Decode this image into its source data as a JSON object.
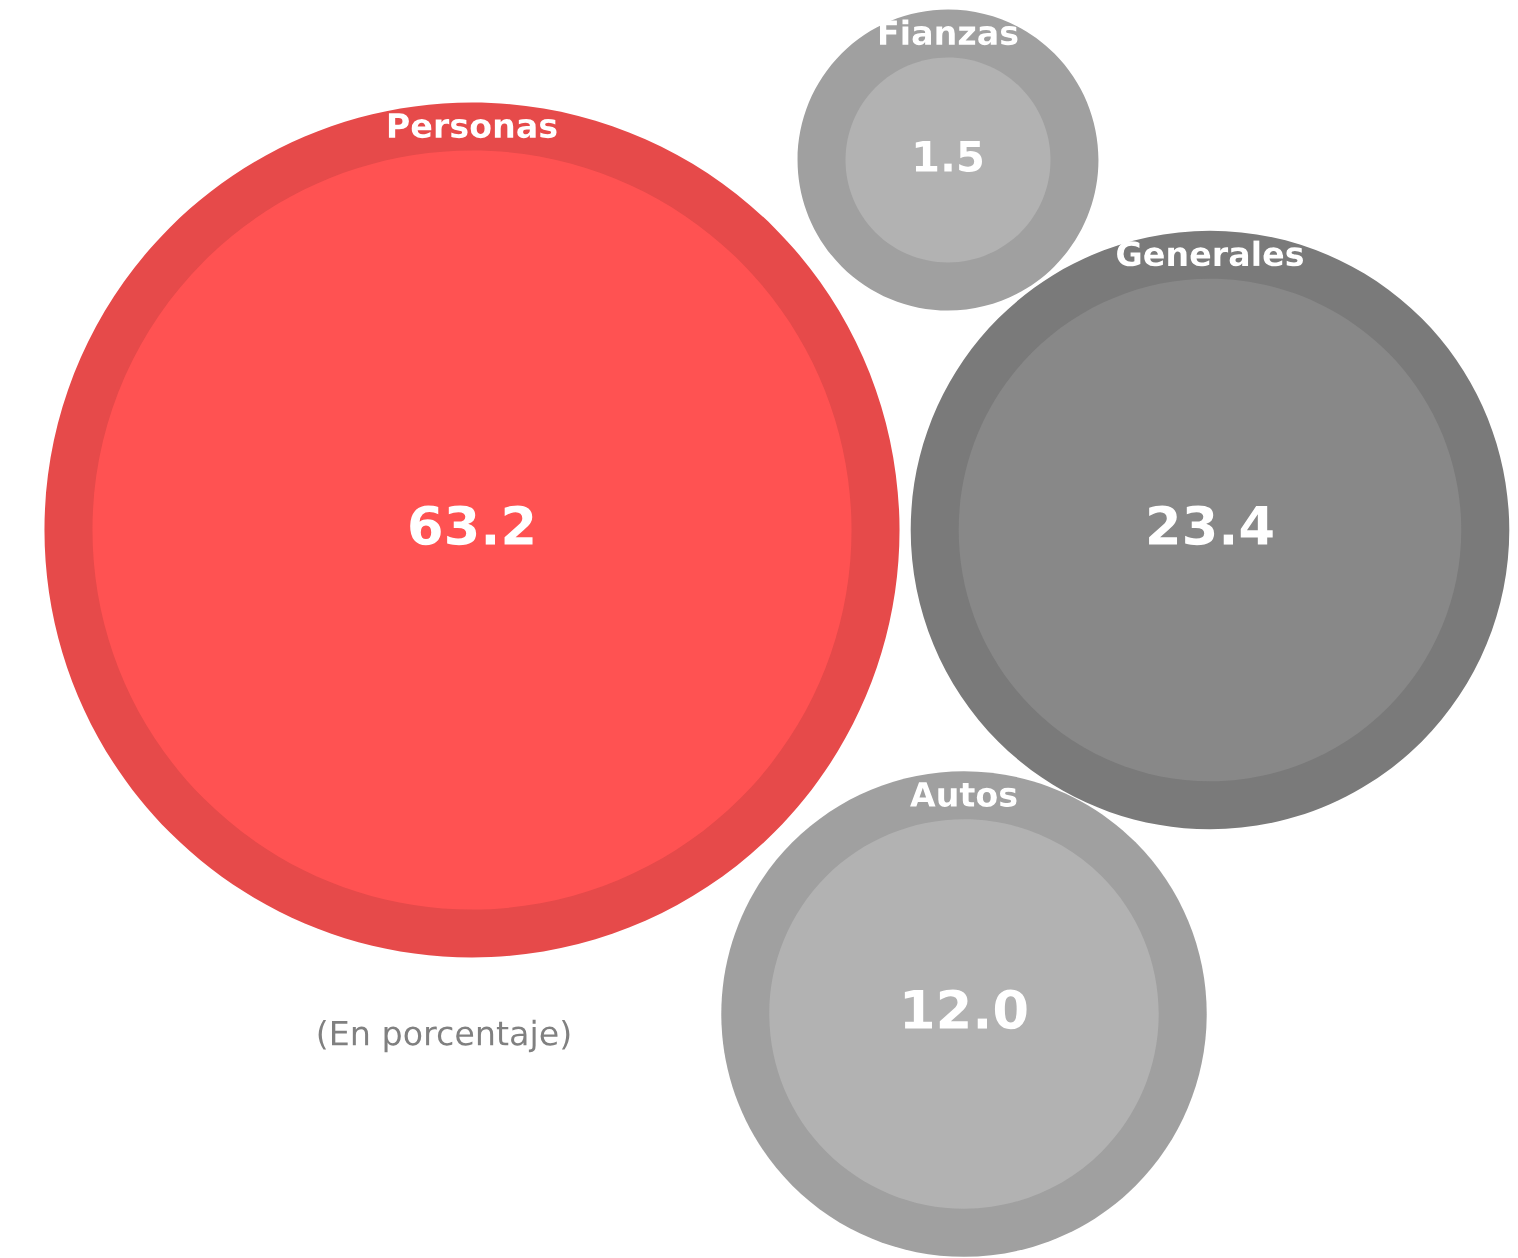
{
  "chart_data": {
    "type": "other",
    "categories": [
      "Personas",
      "Fianzas",
      "Generales",
      "Autos"
    ],
    "values": [
      63.2,
      1.5,
      23.4,
      12.0
    ],
    "value_labels": [
      "63.2",
      "1.5",
      "23.4",
      "12.0"
    ],
    "colors": [
      "#ff5252",
      "#b2b2b2",
      "#888888",
      "#b2b2b2"
    ],
    "annotations": [
      "(En porcentaje)"
    ]
  }
}
